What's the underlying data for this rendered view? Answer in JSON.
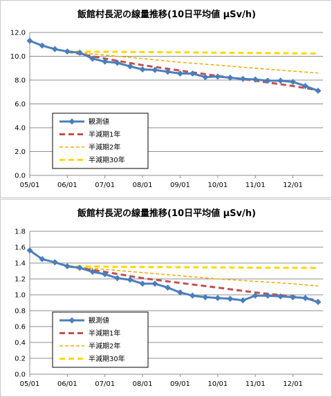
{
  "chart_data": [
    {
      "type": "line",
      "title": "飯館村長泥の線量推移(10日平均値 μSv/h)",
      "ylim": [
        0,
        12
      ],
      "yticks": [
        "0.0",
        "2.0",
        "4.0",
        "6.0",
        "8.0",
        "10.0",
        "12.0"
      ],
      "xlim": [
        0,
        7.8
      ],
      "xticks": [
        "05/01",
        "06/01",
        "07/01",
        "08/01",
        "09/01",
        "10/01",
        "11/01",
        "12/01"
      ],
      "grid": true,
      "legend_position": "lower-left",
      "series": [
        {
          "name": "観測値",
          "color": "#4a7ebb",
          "style": "solid-marker",
          "points": [
            [
              0,
              11.3
            ],
            [
              0.33,
              10.9
            ],
            [
              0.67,
              10.6
            ],
            [
              1.0,
              10.4
            ],
            [
              1.33,
              10.3
            ],
            [
              1.67,
              9.8
            ],
            [
              2.0,
              9.55
            ],
            [
              2.33,
              9.45
            ],
            [
              2.67,
              9.15
            ],
            [
              3.0,
              8.9
            ],
            [
              3.33,
              8.85
            ],
            [
              3.67,
              8.7
            ],
            [
              4.0,
              8.55
            ],
            [
              4.33,
              8.55
            ],
            [
              4.67,
              8.25
            ],
            [
              5.0,
              8.3
            ],
            [
              5.33,
              8.2
            ],
            [
              5.67,
              8.1
            ],
            [
              6.0,
              8.05
            ],
            [
              6.33,
              7.95
            ],
            [
              6.67,
              7.95
            ],
            [
              7.0,
              7.85
            ],
            [
              7.33,
              7.5
            ],
            [
              7.67,
              7.1
            ]
          ]
        },
        {
          "name": "半減期1年",
          "color": "#c0504d",
          "style": "dash-thick",
          "points": [
            [
              1.0,
              10.4
            ],
            [
              2.0,
              9.8
            ],
            [
              3.0,
              9.25
            ],
            [
              4.0,
              8.8
            ],
            [
              5.0,
              8.35
            ],
            [
              6.0,
              7.95
            ],
            [
              7.0,
              7.5
            ],
            [
              7.67,
              7.15
            ]
          ]
        },
        {
          "name": "半減期2年",
          "color": "#f0a800",
          "style": "dash-thin",
          "points": [
            [
              1.0,
              10.4
            ],
            [
              2.0,
              10.1
            ],
            [
              3.0,
              9.8
            ],
            [
              4.0,
              9.5
            ],
            [
              5.0,
              9.25
            ],
            [
              6.0,
              9.0
            ],
            [
              7.0,
              8.75
            ],
            [
              7.67,
              8.6
            ]
          ]
        },
        {
          "name": "半減期30年",
          "color": "#ffd700",
          "style": "dash-thick",
          "points": [
            [
              1.0,
              10.4
            ],
            [
              2.0,
              10.38
            ],
            [
              3.0,
              10.35
            ],
            [
              4.0,
              10.33
            ],
            [
              5.0,
              10.3
            ],
            [
              6.0,
              10.27
            ],
            [
              7.0,
              10.25
            ],
            [
              7.67,
              10.23
            ]
          ]
        }
      ]
    },
    {
      "type": "line",
      "title": "飯館村長泥の線量推移(10日平均値 μSv/h)",
      "ylim": [
        0,
        1.8
      ],
      "yticks": [
        "0.0",
        "0.2",
        "0.4",
        "0.6",
        "0.8",
        "1.0",
        "1.2",
        "1.4",
        "1.6",
        "1.8"
      ],
      "xlim": [
        0,
        7.8
      ],
      "xticks": [
        "05/01",
        "06/01",
        "07/01",
        "08/01",
        "09/01",
        "10/01",
        "11/01",
        "12/01"
      ],
      "grid": true,
      "legend_position": "lower-left",
      "series": [
        {
          "name": "観測値",
          "color": "#4a7ebb",
          "style": "solid-marker",
          "points": [
            [
              0,
              1.56
            ],
            [
              0.33,
              1.45
            ],
            [
              0.67,
              1.41
            ],
            [
              1.0,
              1.36
            ],
            [
              1.33,
              1.34
            ],
            [
              1.67,
              1.29
            ],
            [
              2.0,
              1.26
            ],
            [
              2.33,
              1.21
            ],
            [
              2.67,
              1.19
            ],
            [
              3.0,
              1.14
            ],
            [
              3.33,
              1.14
            ],
            [
              3.67,
              1.09
            ],
            [
              4.0,
              1.03
            ],
            [
              4.33,
              0.99
            ],
            [
              4.67,
              0.97
            ],
            [
              5.0,
              0.96
            ],
            [
              5.33,
              0.95
            ],
            [
              5.67,
              0.93
            ],
            [
              6.0,
              0.99
            ],
            [
              6.33,
              0.99
            ],
            [
              6.67,
              0.98
            ],
            [
              7.0,
              0.97
            ],
            [
              7.33,
              0.96
            ],
            [
              7.67,
              0.91
            ]
          ]
        },
        {
          "name": "半減期1年",
          "color": "#c0504d",
          "style": "dash-thick",
          "points": [
            [
              1.0,
              1.36
            ],
            [
              2.0,
              1.29
            ],
            [
              3.0,
              1.21
            ],
            [
              4.0,
              1.15
            ],
            [
              5.0,
              1.09
            ],
            [
              6.0,
              1.03
            ],
            [
              7.0,
              0.98
            ],
            [
              7.67,
              0.93
            ]
          ]
        },
        {
          "name": "半減期2年",
          "color": "#f0a800",
          "style": "dash-thin",
          "points": [
            [
              1.0,
              1.36
            ],
            [
              2.0,
              1.32
            ],
            [
              3.0,
              1.28
            ],
            [
              4.0,
              1.24
            ],
            [
              5.0,
              1.2
            ],
            [
              6.0,
              1.17
            ],
            [
              7.0,
              1.14
            ],
            [
              7.67,
              1.11
            ]
          ]
        },
        {
          "name": "半減期30年",
          "color": "#ffd700",
          "style": "dash-thick",
          "points": [
            [
              1.0,
              1.36
            ],
            [
              2.0,
              1.355
            ],
            [
              3.0,
              1.35
            ],
            [
              4.0,
              1.348
            ],
            [
              5.0,
              1.345
            ],
            [
              6.0,
              1.342
            ],
            [
              7.0,
              1.34
            ],
            [
              7.67,
              1.338
            ]
          ]
        }
      ]
    }
  ]
}
